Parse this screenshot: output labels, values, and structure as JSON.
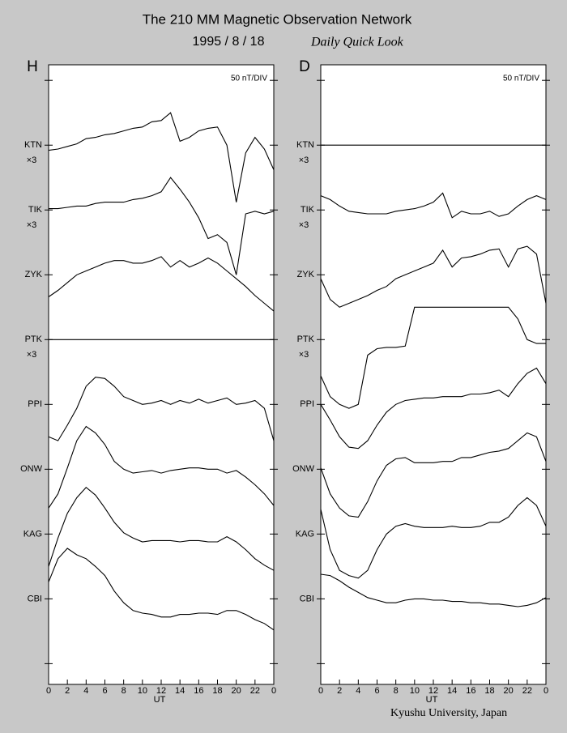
{
  "header": {
    "title": "The 210 MM Magnetic Observation Network",
    "date": "1995 / 8 / 18",
    "subtitle": "Daily Quick Look",
    "credit": "Kyushu University, Japan"
  },
  "chart_data": [
    {
      "type": "line",
      "panel_label": "H",
      "scale_note": "50 nT/DIV",
      "xlabel": "UT",
      "x": [
        0,
        1,
        2,
        3,
        4,
        5,
        6,
        7,
        8,
        9,
        10,
        11,
        12,
        13,
        14,
        15,
        16,
        17,
        18,
        19,
        20,
        21,
        22,
        23,
        24
      ],
      "xlim": [
        0,
        24
      ],
      "xticks": [
        0,
        2,
        4,
        6,
        8,
        10,
        12,
        14,
        16,
        18,
        20,
        22,
        {
          "value": 24,
          "label": "0"
        }
      ],
      "ylim": [
        -16,
        462
      ],
      "yticks": [
        0,
        {
          "value": 50,
          "label": "CBI"
        },
        {
          "value": 100,
          "label": "KAG"
        },
        {
          "value": 150,
          "label": "ONW"
        },
        {
          "value": 200,
          "label": "PPI"
        },
        {
          "value": 250,
          "label": "PTK"
        },
        {
          "value": 300,
          "label": "ZYK"
        },
        {
          "value": 350,
          "label": "TIK"
        },
        {
          "value": 400,
          "label": "KTN"
        },
        450
      ],
      "multiplier_labels": [
        {
          "value": 400,
          "label": "×3"
        },
        {
          "value": 350,
          "label": "×3"
        },
        {
          "value": 250,
          "label": "×3"
        }
      ],
      "series": [
        {
          "color": "#000000",
          "values": [
            396,
            397,
            399,
            401,
            405,
            406,
            408,
            409,
            411,
            413,
            414,
            418,
            419,
            425,
            403,
            406,
            411,
            413,
            414,
            400,
            356,
            394,
            406,
            397,
            381
          ]
        },
        {
          "color": "#000000",
          "values": [
            351,
            351,
            352,
            353,
            353,
            355,
            356,
            356,
            356,
            358,
            359,
            361,
            364,
            375,
            366,
            356,
            344,
            328,
            331,
            325,
            300,
            347,
            349,
            347,
            349
          ]
        },
        {
          "color": "#000000",
          "values": [
            283,
            288,
            294,
            300,
            303,
            306,
            309,
            311,
            311,
            309,
            309,
            311,
            314,
            306,
            311,
            306,
            309,
            313,
            309,
            303,
            297,
            291,
            284,
            278,
            272
          ]
        },
        {
          "color": "#000000",
          "values": [
            250,
            250,
            250,
            250,
            250,
            250,
            250,
            250,
            250,
            250,
            250,
            250,
            250,
            250,
            250,
            250,
            250,
            250,
            250,
            250,
            250,
            250,
            250,
            250,
            250
          ]
        },
        {
          "color": "#000000",
          "values": [
            175,
            172,
            184,
            197,
            214,
            221,
            220,
            214,
            206,
            203,
            200,
            201,
            203,
            200,
            203,
            201,
            204,
            201,
            203,
            205,
            200,
            201,
            203,
            197,
            172
          ]
        },
        {
          "color": "#000000",
          "values": [
            120,
            131,
            151,
            172,
            183,
            178,
            169,
            156,
            150,
            147,
            148,
            149,
            147,
            149,
            150,
            151,
            151,
            150,
            150,
            147,
            149,
            144,
            138,
            131,
            122
          ]
        },
        {
          "color": "#000000",
          "values": [
            75,
            97,
            116,
            128,
            136,
            130,
            120,
            109,
            101,
            97,
            94,
            95,
            95,
            95,
            94,
            95,
            95,
            94,
            94,
            98,
            94,
            88,
            81,
            76,
            72
          ]
        },
        {
          "color": "#000000",
          "values": [
            63,
            81,
            89,
            84,
            81,
            75,
            68,
            56,
            47,
            41,
            39,
            38,
            36,
            36,
            38,
            38,
            39,
            39,
            38,
            41,
            41,
            38,
            34,
            31,
            26
          ]
        }
      ]
    },
    {
      "type": "line",
      "panel_label": "D",
      "scale_note": "50 nT/DIV",
      "xlabel": "UT",
      "x": [
        0,
        1,
        2,
        3,
        4,
        5,
        6,
        7,
        8,
        9,
        10,
        11,
        12,
        13,
        14,
        15,
        16,
        17,
        18,
        19,
        20,
        21,
        22,
        23,
        24
      ],
      "xlim": [
        0,
        24
      ],
      "xticks": [
        0,
        2,
        4,
        6,
        8,
        10,
        12,
        14,
        16,
        18,
        20,
        22,
        {
          "value": 24,
          "label": "0"
        }
      ],
      "ylim": [
        -16,
        462
      ],
      "yticks": [
        0,
        {
          "value": 50,
          "label": "CBI"
        },
        {
          "value": 100,
          "label": "KAG"
        },
        {
          "value": 150,
          "label": "ONW"
        },
        {
          "value": 200,
          "label": "PPI"
        },
        {
          "value": 250,
          "label": "PTK"
        },
        {
          "value": 300,
          "label": "ZYK"
        },
        {
          "value": 350,
          "label": "TIK"
        },
        {
          "value": 400,
          "label": "KTN"
        },
        450
      ],
      "multiplier_labels": [
        {
          "value": 400,
          "label": "×3"
        },
        {
          "value": 350,
          "label": "×3"
        },
        {
          "value": 250,
          "label": "×3"
        }
      ],
      "series": [
        {
          "color": "#000000",
          "values": [
            400,
            400,
            400,
            400,
            400,
            400,
            400,
            400,
            400,
            400,
            400,
            400,
            400,
            400,
            400,
            400,
            400,
            400,
            400,
            400,
            400,
            400,
            400,
            400,
            400
          ]
        },
        {
          "color": "#000000",
          "values": [
            361,
            358,
            353,
            349,
            348,
            347,
            347,
            347,
            349,
            350,
            351,
            353,
            356,
            363,
            344,
            349,
            347,
            347,
            349,
            345,
            347,
            353,
            358,
            361,
            358
          ]
        },
        {
          "color": "#000000",
          "values": [
            297,
            281,
            275,
            278,
            281,
            284,
            288,
            291,
            297,
            300,
            303,
            306,
            309,
            319,
            306,
            313,
            314,
            316,
            319,
            320,
            306,
            320,
            322,
            316,
            278
          ]
        },
        {
          "color": "#000000",
          "values": [
            222,
            206,
            200,
            197,
            200,
            238,
            243,
            244,
            244,
            245,
            275,
            275,
            275,
            275,
            275,
            275,
            275,
            275,
            275,
            275,
            275,
            266,
            250,
            247,
            247
          ]
        },
        {
          "color": "#000000",
          "values": [
            200,
            188,
            175,
            167,
            166,
            172,
            184,
            194,
            200,
            203,
            204,
            205,
            205,
            206,
            206,
            206,
            208,
            208,
            209,
            211,
            206,
            216,
            224,
            228,
            216
          ]
        },
        {
          "color": "#000000",
          "values": [
            151,
            131,
            120,
            114,
            113,
            125,
            141,
            153,
            158,
            159,
            155,
            155,
            155,
            156,
            156,
            159,
            159,
            161,
            163,
            164,
            166,
            172,
            178,
            175,
            156
          ]
        },
        {
          "color": "#000000",
          "values": [
            119,
            88,
            72,
            68,
            66,
            72,
            88,
            100,
            106,
            108,
            106,
            105,
            105,
            105,
            106,
            105,
            105,
            106,
            109,
            109,
            113,
            122,
            128,
            122,
            106
          ]
        },
        {
          "color": "#000000",
          "values": [
            69,
            68,
            64,
            59,
            55,
            51,
            49,
            47,
            47,
            49,
            50,
            50,
            49,
            49,
            48,
            48,
            47,
            47,
            46,
            46,
            45,
            44,
            45,
            47,
            51
          ]
        }
      ]
    }
  ]
}
